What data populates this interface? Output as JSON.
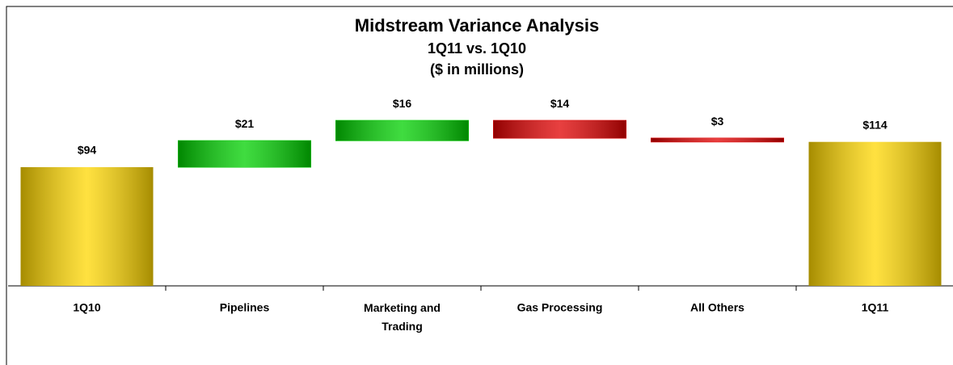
{
  "chart_data": {
    "type": "waterfall",
    "title": "Midstream Variance Analysis",
    "subtitle": [
      "1Q11 vs. 1Q10",
      "($ in millions)"
    ],
    "categories": [
      "1Q10",
      "Pipelines",
      "Marketing and Trading",
      "Gas Processing",
      "All Others",
      "1Q11"
    ],
    "values": [
      94,
      21,
      16,
      -14,
      -3,
      114
    ],
    "value_labels": [
      "$94",
      "$21",
      "$16",
      "$14",
      "$3",
      "$114"
    ],
    "colors": [
      "#ffd700",
      "#00d000",
      "#00d000",
      "#e00000",
      "#e00000",
      "#ffd700"
    ],
    "ylim": [
      0,
      220
    ]
  }
}
